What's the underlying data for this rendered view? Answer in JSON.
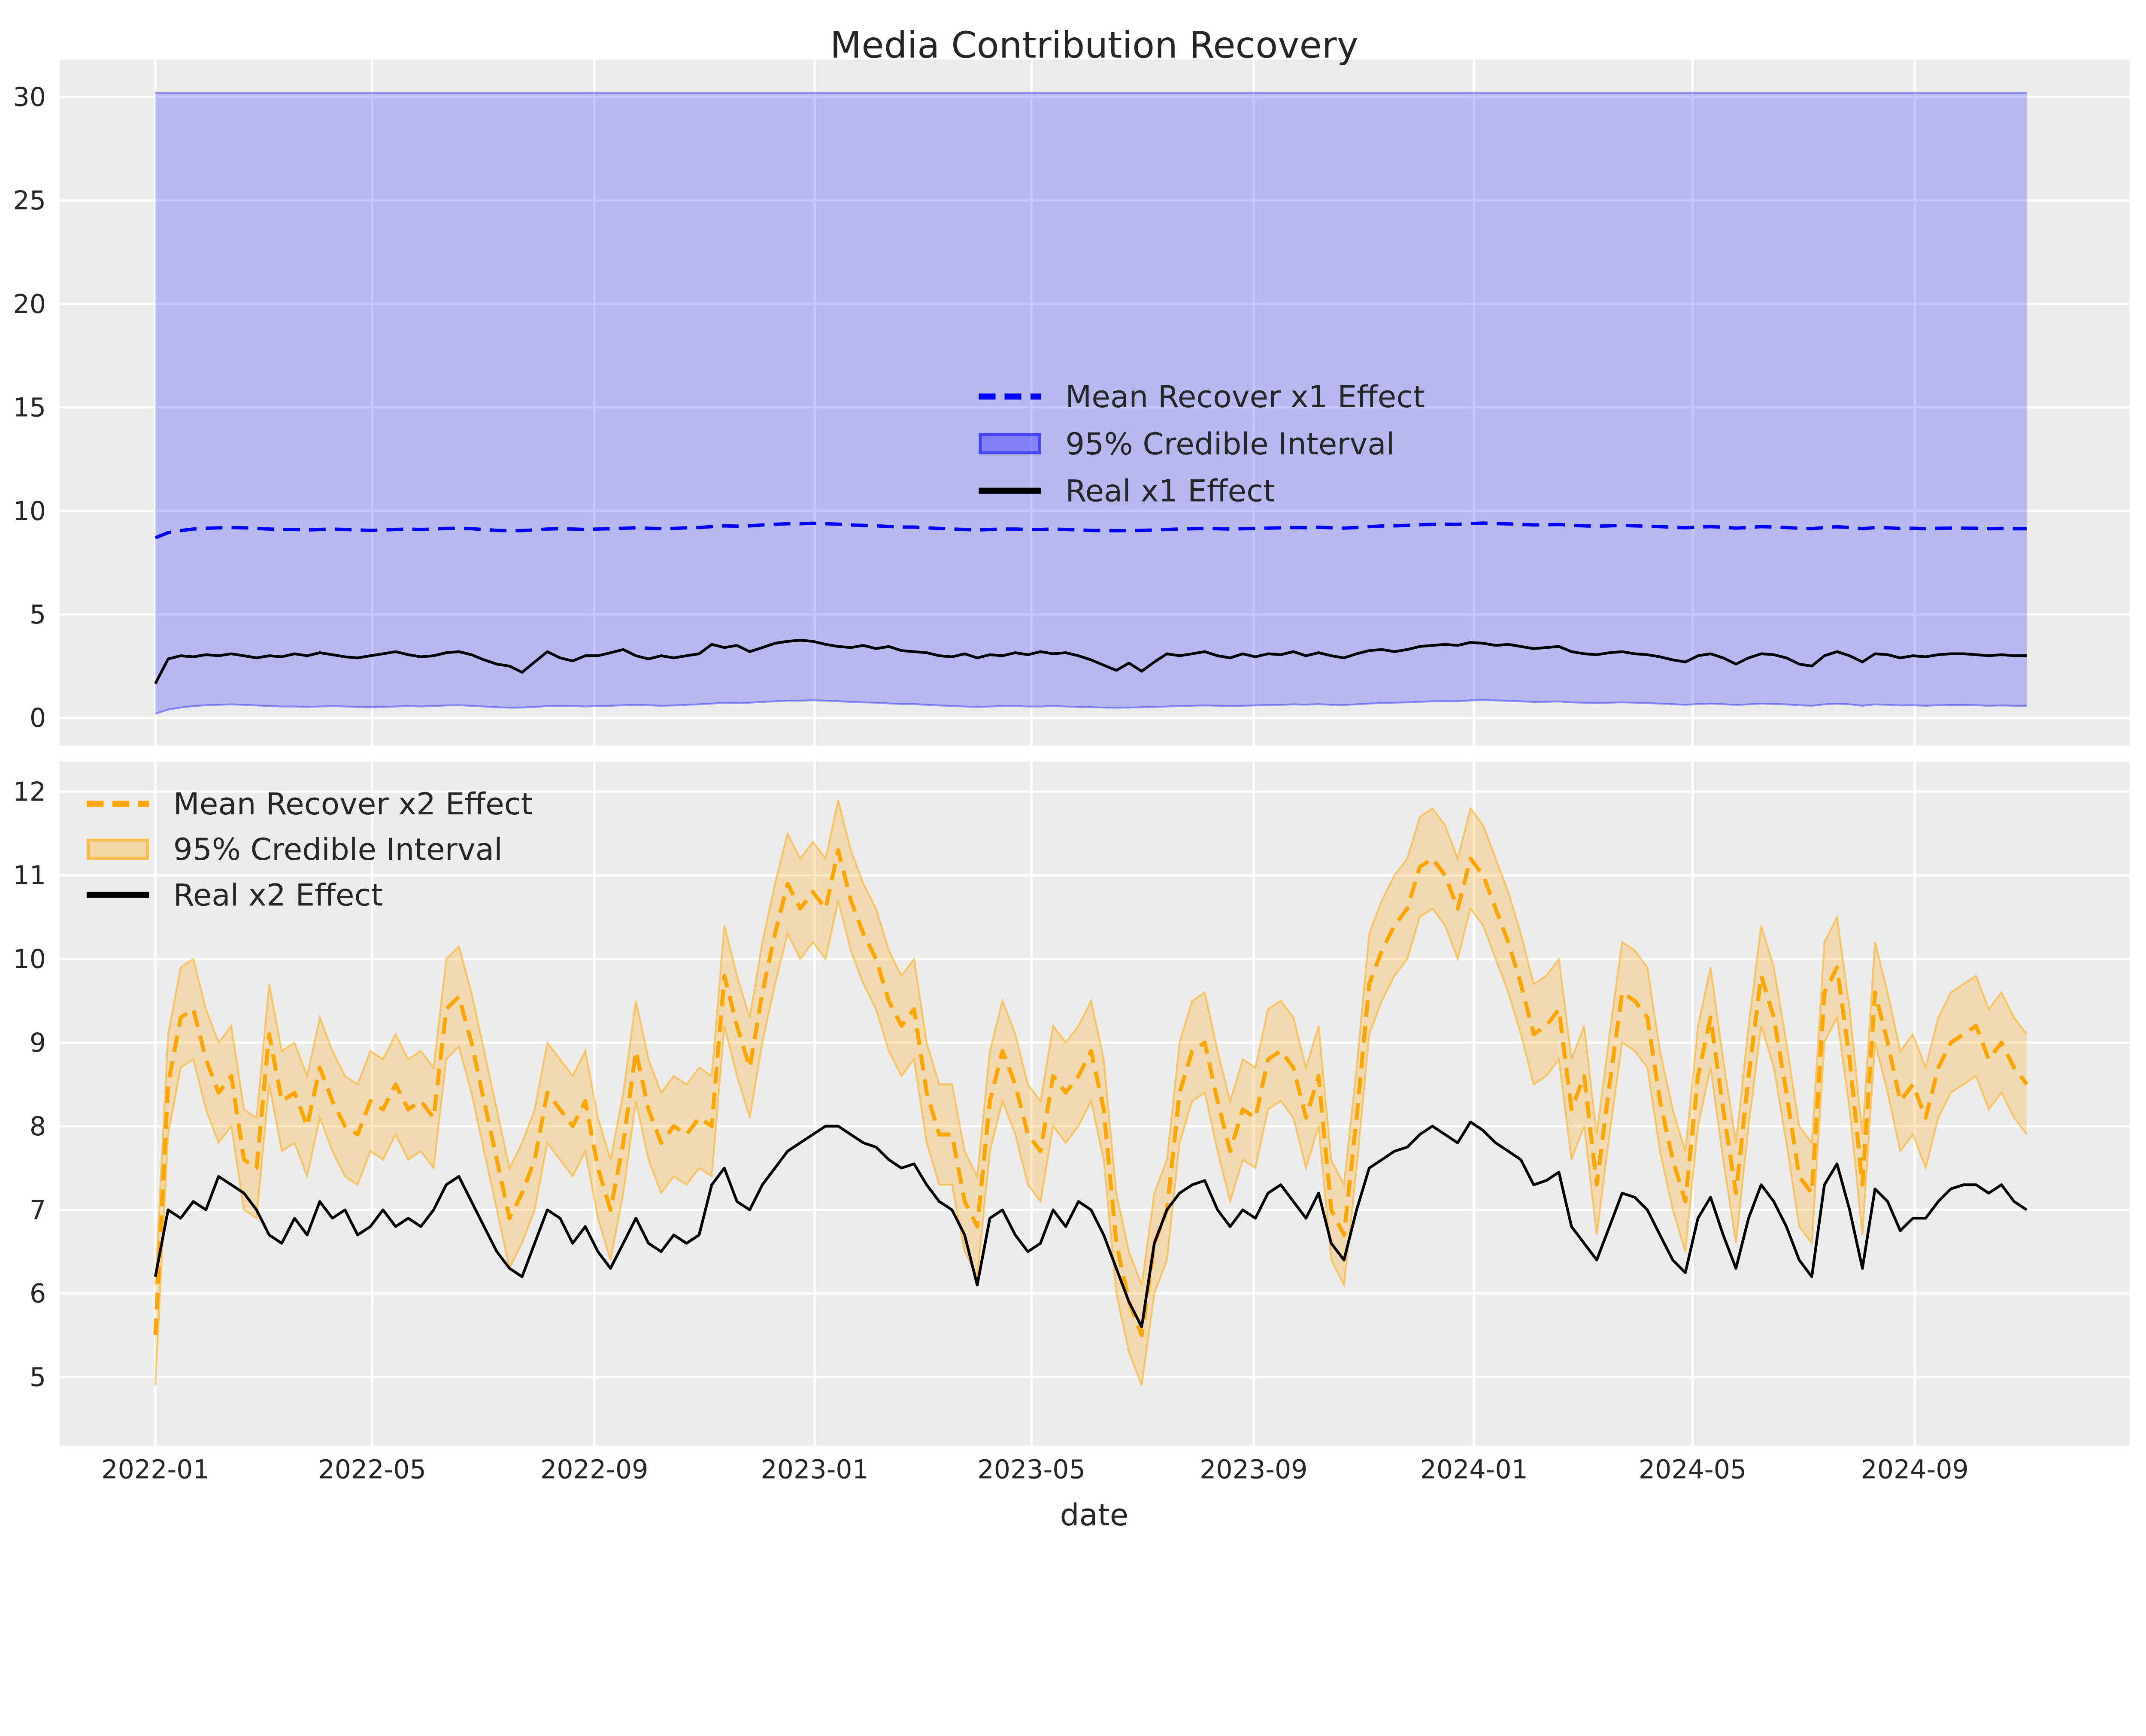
{
  "title": "Media Contribution Recovery",
  "xlabel": "date",
  "colors": {
    "page_bg": "#ffffff",
    "plot_bg": "#ececec",
    "grid": "#ffffff",
    "text": "#262626",
    "blue": "#0000ff",
    "orange": "#ffa500",
    "black": "#000000",
    "blue_band_fill": "rgba(0,0,255,0.22)",
    "blue_band_edge": "rgba(0,0,255,0.38)",
    "orange_band_fill": "rgba(255,165,0,0.25)",
    "orange_band_edge": "rgba(255,165,0,0.50)"
  },
  "legend_x1": {
    "items": [
      {
        "label": "Mean Recover x1 Effect"
      },
      {
        "label": "95% Credible Interval"
      },
      {
        "label": "Real x1 Effect"
      }
    ]
  },
  "legend_x2": {
    "items": [
      {
        "label": "Mean Recover x2 Effect"
      },
      {
        "label": "95% Credible Interval"
      },
      {
        "label": "Real x2 Effect"
      }
    ]
  },
  "chart_data": [
    {
      "type": "line",
      "panel": "top",
      "x": {
        "start_date": "2022-01-01",
        "step_days": 7,
        "n": 149
      },
      "xlim_days": [
        -53,
        1093
      ],
      "ylim": [
        -1.34,
        31.8
      ],
      "yticks": [
        0,
        5,
        10,
        15,
        20,
        25,
        30
      ],
      "grid": true,
      "legend_position": "center",
      "ci_band": {
        "name": "95% Credible Interval",
        "upper_const": 30.2,
        "lower_offset_from_mean": 8.55,
        "lower_min": 0.2
      },
      "series": [
        {
          "name": "Mean Recover x1 Effect",
          "style": "dashed",
          "color": "#0000ff",
          "values": [
            8.7,
            8.95,
            9.05,
            9.12,
            9.16,
            9.18,
            9.2,
            9.18,
            9.15,
            9.12,
            9.1,
            9.1,
            9.08,
            9.1,
            9.12,
            9.1,
            9.08,
            9.06,
            9.08,
            9.1,
            9.12,
            9.1,
            9.12,
            9.15,
            9.16,
            9.14,
            9.1,
            9.06,
            9.04,
            9.05,
            9.08,
            9.12,
            9.14,
            9.12,
            9.1,
            9.12,
            9.14,
            9.16,
            9.18,
            9.16,
            9.14,
            9.15,
            9.18,
            9.2,
            9.24,
            9.28,
            9.26,
            9.28,
            9.32,
            9.35,
            9.38,
            9.38,
            9.4,
            9.38,
            9.36,
            9.32,
            9.3,
            9.28,
            9.25,
            9.22,
            9.22,
            9.18,
            9.15,
            9.12,
            9.1,
            9.08,
            9.1,
            9.12,
            9.12,
            9.1,
            9.1,
            9.12,
            9.1,
            9.08,
            9.06,
            9.05,
            9.04,
            9.05,
            9.06,
            9.08,
            9.1,
            9.12,
            9.14,
            9.15,
            9.14,
            9.12,
            9.14,
            9.15,
            9.17,
            9.18,
            9.2,
            9.19,
            9.21,
            9.18,
            9.17,
            9.2,
            9.24,
            9.27,
            9.28,
            9.3,
            9.33,
            9.35,
            9.36,
            9.35,
            9.39,
            9.41,
            9.39,
            9.37,
            9.35,
            9.32,
            9.33,
            9.34,
            9.3,
            9.28,
            9.26,
            9.28,
            9.3,
            9.28,
            9.26,
            9.24,
            9.21,
            9.18,
            9.22,
            9.24,
            9.21,
            9.17,
            9.2,
            9.24,
            9.22,
            9.2,
            9.16,
            9.14,
            9.2,
            9.23,
            9.2,
            9.14,
            9.2,
            9.18,
            9.15,
            9.16,
            9.14,
            9.16,
            9.17,
            9.17,
            9.16,
            9.14,
            9.15,
            9.14,
            9.14
          ]
        },
        {
          "name": "Real x1 Effect",
          "style": "solid",
          "color": "#000000",
          "values": [
            1.65,
            2.85,
            3.0,
            2.95,
            3.05,
            3.0,
            3.1,
            3.0,
            2.9,
            3.0,
            2.95,
            3.1,
            3.0,
            3.15,
            3.05,
            2.95,
            2.9,
            3.0,
            3.1,
            3.2,
            3.05,
            2.95,
            3.0,
            3.15,
            3.2,
            3.05,
            2.8,
            2.6,
            2.5,
            2.2,
            2.7,
            3.2,
            2.9,
            2.75,
            3.0,
            3.0,
            3.15,
            3.3,
            3.0,
            2.85,
            3.0,
            2.9,
            3.0,
            3.1,
            3.55,
            3.4,
            3.5,
            3.2,
            3.4,
            3.6,
            3.7,
            3.75,
            3.7,
            3.55,
            3.45,
            3.4,
            3.5,
            3.35,
            3.45,
            3.25,
            3.2,
            3.15,
            3.0,
            2.95,
            3.1,
            2.9,
            3.05,
            3.0,
            3.15,
            3.05,
            3.2,
            3.1,
            3.15,
            3.0,
            2.8,
            2.55,
            2.3,
            2.65,
            2.25,
            2.7,
            3.1,
            3.0,
            3.1,
            3.2,
            3.0,
            2.9,
            3.1,
            2.95,
            3.1,
            3.05,
            3.2,
            3.0,
            3.15,
            3.0,
            2.9,
            3.1,
            3.25,
            3.3,
            3.2,
            3.3,
            3.45,
            3.5,
            3.55,
            3.5,
            3.65,
            3.6,
            3.5,
            3.55,
            3.45,
            3.35,
            3.4,
            3.45,
            3.2,
            3.1,
            3.05,
            3.15,
            3.2,
            3.1,
            3.05,
            2.95,
            2.8,
            2.7,
            3.0,
            3.1,
            2.9,
            2.6,
            2.9,
            3.1,
            3.05,
            2.9,
            2.6,
            2.5,
            3.0,
            3.2,
            3.0,
            2.7,
            3.1,
            3.05,
            2.9,
            3.0,
            2.95,
            3.05,
            3.1,
            3.1,
            3.05,
            3.0,
            3.05,
            3.0,
            3.0
          ]
        }
      ]
    },
    {
      "type": "line",
      "panel": "bottom",
      "x": {
        "start_date": "2022-01-01",
        "step_days": 7,
        "n": 149
      },
      "xlim_days": [
        -53,
        1093
      ],
      "ylim": [
        4.18,
        12.36
      ],
      "yticks": [
        5,
        6,
        7,
        8,
        9,
        10,
        11,
        12
      ],
      "grid": true,
      "xlabel": "date",
      "legend_position": "upper left",
      "xticks": [
        {
          "day": 0,
          "label": "2022-01"
        },
        {
          "day": 120,
          "label": "2022-05"
        },
        {
          "day": 243,
          "label": "2022-09"
        },
        {
          "day": 365,
          "label": "2023-01"
        },
        {
          "day": 485,
          "label": "2023-05"
        },
        {
          "day": 608,
          "label": "2023-09"
        },
        {
          "day": 730,
          "label": "2024-01"
        },
        {
          "day": 851,
          "label": "2024-05"
        },
        {
          "day": 974,
          "label": "2024-09"
        }
      ],
      "ci_band": {
        "name": "95% Credible Interval",
        "half_width": 0.6
      },
      "series": [
        {
          "name": "Mean Recover x2 Effect",
          "style": "dashed",
          "color": "#ffa500",
          "values": [
            5.5,
            8.5,
            9.3,
            9.4,
            8.8,
            8.4,
            8.6,
            7.6,
            7.5,
            9.1,
            8.3,
            8.4,
            8.0,
            8.7,
            8.3,
            8.0,
            7.9,
            8.3,
            8.2,
            8.5,
            8.2,
            8.3,
            8.1,
            9.4,
            9.55,
            9.0,
            8.3,
            7.6,
            6.9,
            7.2,
            7.6,
            8.4,
            8.2,
            8.0,
            8.3,
            7.5,
            7.0,
            7.8,
            8.9,
            8.2,
            7.8,
            8.0,
            7.9,
            8.1,
            8.0,
            9.8,
            9.2,
            8.7,
            9.6,
            10.3,
            10.9,
            10.6,
            10.8,
            10.6,
            11.3,
            10.7,
            10.3,
            10.0,
            9.5,
            9.2,
            9.4,
            8.4,
            7.9,
            7.9,
            7.1,
            6.8,
            8.3,
            8.9,
            8.5,
            7.9,
            7.7,
            8.6,
            8.4,
            8.6,
            8.9,
            8.2,
            6.6,
            5.9,
            5.5,
            6.6,
            7.0,
            8.4,
            8.9,
            9.0,
            8.3,
            7.7,
            8.2,
            8.1,
            8.8,
            8.9,
            8.7,
            8.1,
            8.6,
            7.0,
            6.7,
            8.1,
            9.7,
            10.1,
            10.4,
            10.6,
            11.1,
            11.2,
            11.0,
            10.6,
            11.2,
            11.0,
            10.6,
            10.2,
            9.7,
            9.1,
            9.2,
            9.4,
            8.2,
            8.6,
            7.3,
            8.5,
            9.6,
            9.5,
            9.3,
            8.3,
            7.6,
            7.1,
            8.6,
            9.3,
            8.2,
            7.2,
            8.6,
            9.8,
            9.3,
            8.4,
            7.4,
            7.2,
            9.6,
            9.9,
            8.8,
            7.3,
            9.6,
            9.0,
            8.3,
            8.5,
            8.1,
            8.7,
            9.0,
            9.1,
            9.2,
            8.8,
            9.0,
            8.7,
            8.5
          ]
        },
        {
          "name": "Real x2 Effect",
          "style": "solid",
          "color": "#000000",
          "values": [
            6.2,
            7.0,
            6.9,
            7.1,
            7.0,
            7.4,
            7.3,
            7.2,
            7.0,
            6.7,
            6.6,
            6.9,
            6.7,
            7.1,
            6.9,
            7.0,
            6.7,
            6.8,
            7.0,
            6.8,
            6.9,
            6.8,
            7.0,
            7.3,
            7.4,
            7.1,
            6.8,
            6.5,
            6.3,
            6.2,
            6.6,
            7.0,
            6.9,
            6.6,
            6.8,
            6.5,
            6.3,
            6.6,
            6.9,
            6.6,
            6.5,
            6.7,
            6.6,
            6.7,
            7.3,
            7.5,
            7.1,
            7.0,
            7.3,
            7.5,
            7.7,
            7.8,
            7.9,
            8.0,
            8.0,
            7.9,
            7.8,
            7.75,
            7.6,
            7.5,
            7.55,
            7.3,
            7.1,
            7.0,
            6.7,
            6.1,
            6.9,
            7.0,
            6.7,
            6.5,
            6.6,
            7.0,
            6.8,
            7.1,
            7.0,
            6.7,
            6.3,
            5.9,
            5.6,
            6.6,
            7.0,
            7.2,
            7.3,
            7.35,
            7.0,
            6.8,
            7.0,
            6.9,
            7.2,
            7.3,
            7.1,
            6.9,
            7.2,
            6.6,
            6.4,
            7.0,
            7.5,
            7.6,
            7.7,
            7.75,
            7.9,
            8.0,
            7.9,
            7.8,
            8.05,
            7.95,
            7.8,
            7.7,
            7.6,
            7.3,
            7.35,
            7.45,
            6.8,
            6.6,
            6.4,
            6.8,
            7.2,
            7.15,
            7.0,
            6.7,
            6.4,
            6.25,
            6.9,
            7.15,
            6.7,
            6.3,
            6.9,
            7.3,
            7.1,
            6.8,
            6.4,
            6.2,
            7.3,
            7.55,
            7.0,
            6.3,
            7.25,
            7.1,
            6.75,
            6.9,
            6.9,
            7.1,
            7.25,
            7.3,
            7.3,
            7.2,
            7.3,
            7.1,
            7.0
          ]
        }
      ]
    }
  ]
}
